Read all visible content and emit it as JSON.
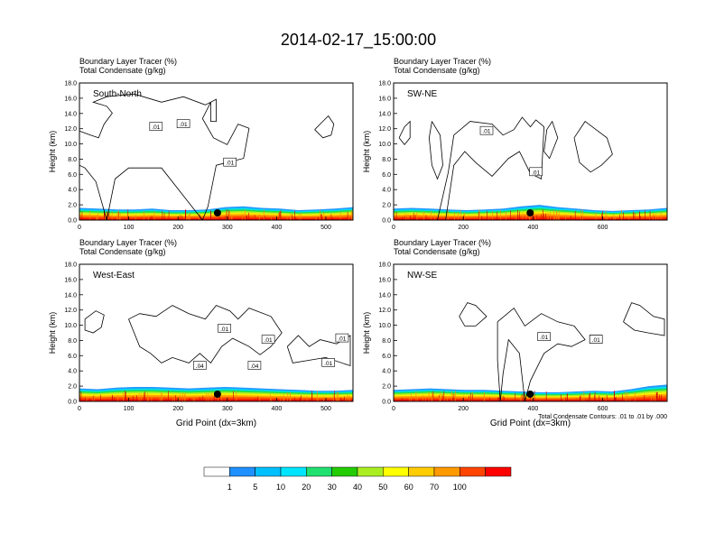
{
  "title": "2014-02-17_15:00:00",
  "chart_data": [
    {
      "type": "heatmap",
      "panel": "South-North",
      "header_line1": "Boundary Layer Tracer   (%)",
      "header_line2": "Total Condensate   (g/kg)",
      "ylabel": "Height (km)",
      "xlabel": "",
      "xlim": [
        0,
        555
      ],
      "ylim": [
        0,
        18
      ],
      "xticks": [
        0,
        100,
        200,
        300,
        400,
        500
      ],
      "yticks": [
        "0.0",
        "2.0",
        "4.0",
        "6.0",
        "8.0",
        "10.0",
        "12.0",
        "14.0",
        "16.0",
        "18.0"
      ],
      "marker_x": 280,
      "contour_labels": [
        ".01",
        ".01",
        ".01"
      ],
      "bl_profile": [
        1.6,
        1.5,
        1.4,
        1.4,
        1.5,
        1.3,
        1.3,
        1.4,
        1.7,
        1.8,
        1.6,
        1.5,
        1.3,
        1.4,
        1.5,
        1.7
      ]
    },
    {
      "type": "heatmap",
      "panel": "SW-NE",
      "header_line1": "Boundary Layer Tracer   (%)",
      "header_line2": "Total Condensate   (g/kg)",
      "ylabel": "Height (km)",
      "xlabel": "",
      "xlim": [
        0,
        785
      ],
      "ylim": [
        0,
        18
      ],
      "xticks": [
        0,
        200,
        400,
        600
      ],
      "yticks": [
        "0.0",
        "2.0",
        "4.0",
        "6.0",
        "8.0",
        "10.0",
        "12.0",
        "14.0",
        "16.0",
        "18.0"
      ],
      "marker_x": 392,
      "contour_labels": [
        ".01",
        ".01"
      ],
      "bl_profile": [
        1.5,
        1.6,
        1.5,
        1.4,
        1.3,
        1.4,
        1.5,
        1.8,
        2.0,
        1.7,
        1.5,
        1.3,
        1.2,
        1.3,
        1.4,
        1.6
      ]
    },
    {
      "type": "heatmap",
      "panel": "West-East",
      "header_line1": "Boundary Layer Tracer   (%)",
      "header_line2": "Total Condensate   (g/kg)",
      "ylabel": "Height (km)",
      "xlabel": "Grid Point (dx=3km)",
      "xlim": [
        0,
        555
      ],
      "ylim": [
        0,
        18
      ],
      "xticks": [
        0,
        100,
        200,
        300,
        400,
        500
      ],
      "yticks": [
        "0.0",
        "2.0",
        "4.0",
        "6.0",
        "8.0",
        "10.0",
        "12.0",
        "14.0",
        "16.0",
        "18.0"
      ],
      "marker_x": 280,
      "contour_labels": [
        ".01",
        ".01",
        ".04",
        ".04",
        ".01",
        ".01"
      ],
      "bl_profile": [
        1.7,
        1.6,
        1.8,
        1.9,
        1.9,
        1.8,
        1.7,
        1.8,
        1.9,
        1.8,
        1.7,
        1.6,
        1.5,
        1.4,
        1.4,
        1.5
      ]
    },
    {
      "type": "heatmap",
      "panel": "NW-SE",
      "header_line1": "Boundary Layer Tracer   (%)",
      "header_line2": "Total Condensate   (g/kg)",
      "ylabel": "Height (km)",
      "xlabel": "Grid Point (dx=3km)",
      "xlim": [
        0,
        785
      ],
      "ylim": [
        0,
        18
      ],
      "xticks": [
        0,
        200,
        400,
        600
      ],
      "yticks": [
        "0.0",
        "2.0",
        "4.0",
        "6.0",
        "8.0",
        "10.0",
        "12.0",
        "14.0",
        "16.0",
        "18.0"
      ],
      "marker_x": 392,
      "contour_labels": [
        ".01",
        ".01",
        ".01"
      ],
      "bl_profile": [
        1.5,
        1.6,
        1.7,
        1.6,
        1.5,
        1.5,
        1.4,
        1.3,
        1.2,
        1.2,
        1.3,
        1.4,
        1.3,
        1.6,
        2.0,
        2.2
      ],
      "footnote": "Total Condensate Contours: .01 to .01 by .000"
    }
  ],
  "colorbar": {
    "labels": [
      "1",
      "5",
      "10",
      "20",
      "30",
      "40",
      "50",
      "60",
      "70",
      "100"
    ],
    "colors": [
      "#ffffff",
      "#1e90ff",
      "#00bfff",
      "#00e5ff",
      "#20e070",
      "#22cc00",
      "#aaee22",
      "#ffff00",
      "#ffcc00",
      "#ff9900",
      "#ff4400",
      "#ff0000"
    ]
  }
}
